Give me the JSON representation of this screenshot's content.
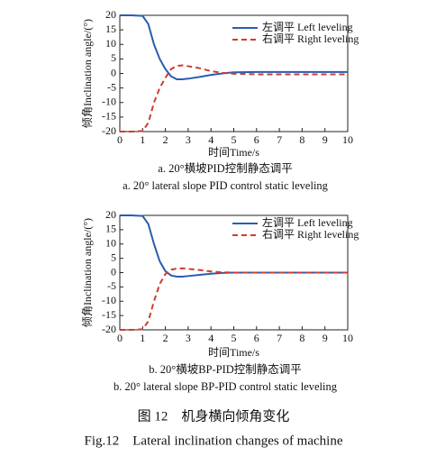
{
  "chart_data": [
    {
      "type": "line",
      "ylabel": "倾角Inclination angle/(°)",
      "xlabel": "时间Time/s",
      "caption_zh": "a. 20°横坡PID控制静态调平",
      "caption_en": "a. 20° lateral slope PID control static leveling",
      "xlim": [
        0,
        10
      ],
      "xticks": [
        0,
        1,
        2,
        3,
        4,
        5,
        6,
        7,
        8,
        9,
        10
      ],
      "ylim": [
        -20,
        20
      ],
      "yticks": [
        -20,
        -15,
        -10,
        -5,
        0,
        5,
        10,
        15,
        20
      ],
      "x": [
        0,
        0.5,
        1,
        1.25,
        1.5,
        1.75,
        2,
        2.25,
        2.5,
        2.75,
        3,
        3.5,
        4,
        4.5,
        5,
        6,
        7,
        8,
        9,
        10
      ],
      "series": [
        {
          "name": "左调平 Left leveling",
          "color": "#2a5db0",
          "dash": false,
          "values": [
            20,
            20,
            19.8,
            17,
            10,
            5,
            1.5,
            -1,
            -2,
            -2,
            -1.8,
            -1.2,
            -0.5,
            0,
            0.4,
            0.5,
            0.5,
            0.5,
            0.5,
            0.5
          ]
        },
        {
          "name": "右调平 Right leveling",
          "color": "#d03a30",
          "dash": true,
          "values": [
            -20,
            -20,
            -19.8,
            -17,
            -10,
            -5,
            -1.5,
            1.5,
            2.6,
            2.8,
            2.5,
            1.8,
            0.8,
            0.2,
            -0.1,
            -0.3,
            -0.3,
            -0.3,
            -0.3,
            -0.3
          ]
        }
      ]
    },
    {
      "type": "line",
      "ylabel": "倾角Inclination angle/(°)",
      "xlabel": "时间Time/s",
      "caption_zh": "b. 20°横坡BP-PID控制静态调平",
      "caption_en": "b. 20° lateral slope BP-PID control static leveling",
      "xlim": [
        0,
        10
      ],
      "xticks": [
        0,
        1,
        2,
        3,
        4,
        5,
        6,
        7,
        8,
        9,
        10
      ],
      "ylim": [
        -20,
        20
      ],
      "yticks": [
        -20,
        -15,
        -10,
        -5,
        0,
        5,
        10,
        15,
        20
      ],
      "x": [
        0,
        0.5,
        1,
        1.25,
        1.5,
        1.75,
        2,
        2.25,
        2.5,
        2.75,
        3,
        3.5,
        4,
        4.5,
        5,
        6,
        7,
        8,
        9,
        10
      ],
      "series": [
        {
          "name": "左调平 Left leveling",
          "color": "#2a5db0",
          "dash": false,
          "values": [
            20,
            20,
            19.8,
            17,
            10,
            4,
            0.5,
            -1,
            -1.4,
            -1.4,
            -1.2,
            -0.8,
            -0.4,
            -0.1,
            0,
            0,
            0,
            0,
            0,
            0
          ]
        },
        {
          "name": "右调平 Right leveling",
          "color": "#d03a30",
          "dash": true,
          "values": [
            -20,
            -20,
            -19.8,
            -17,
            -10,
            -4,
            -0.5,
            1,
            1.4,
            1.5,
            1.3,
            0.9,
            0.4,
            0.1,
            0,
            0,
            0,
            0,
            0,
            0
          ]
        }
      ]
    }
  ],
  "figure_caption_zh": "图 12　机身横向倾角变化",
  "figure_caption_en": "Fig.12　Lateral inclination changes of machine"
}
